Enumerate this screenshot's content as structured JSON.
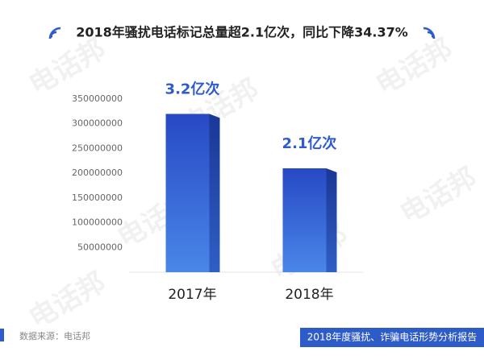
{
  "chart_data": {
    "type": "bar",
    "title": "2018年骚扰电话标记总量超2.1亿次，同比下降34.37%",
    "categories": [
      "2017年",
      "2018年"
    ],
    "values": [
      320000000,
      210000000
    ],
    "value_labels": [
      "3.2亿次",
      "2.1亿次"
    ],
    "color": "#2f5bd0",
    "ylim": [
      0,
      350000000
    ],
    "yticks": [
      50000000,
      100000000,
      150000000,
      200000000,
      250000000,
      300000000,
      350000000
    ],
    "grid": false,
    "watermark": "电话邦",
    "source": "数据来源：电话邦",
    "footer": "2018年度骚扰、诈骗电话形势分析报告"
  }
}
